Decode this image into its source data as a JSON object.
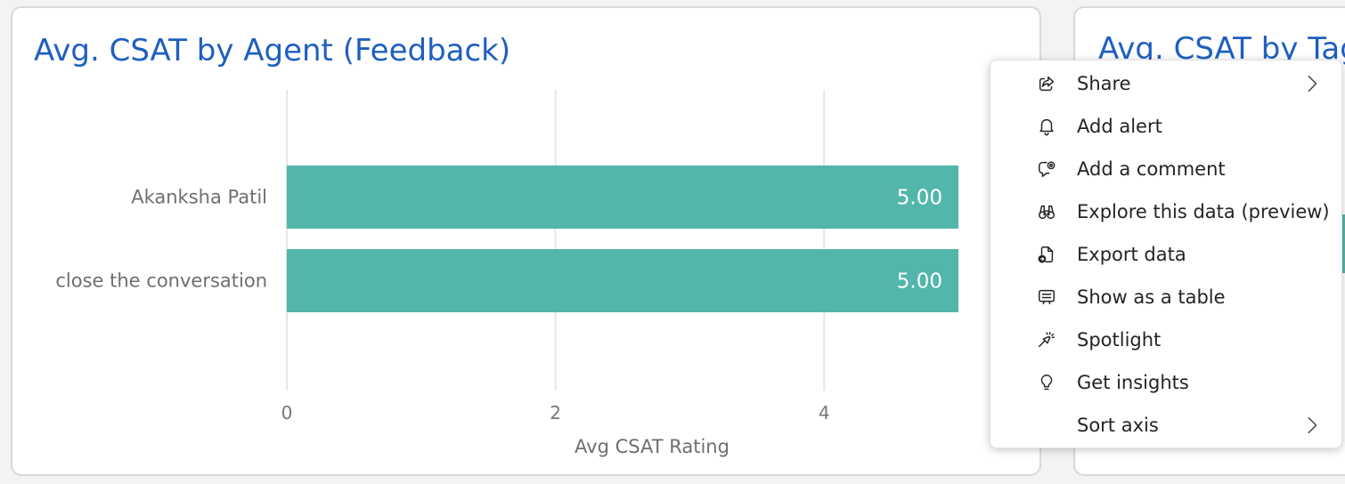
{
  "main_card": {
    "title": "Avg. CSAT by Agent (Feedback)"
  },
  "second_card": {
    "title": "Avg. CSAT by Tag",
    "accent_color": "#52b7aa"
  },
  "chart_data": {
    "type": "bar",
    "orientation": "horizontal",
    "title": "Avg. CSAT by Agent (Feedback)",
    "categories": [
      "Akanksha Patil",
      "close the conversation"
    ],
    "values": [
      5.0,
      5.0
    ],
    "data_labels": [
      "5.00",
      "5.00"
    ],
    "xlabel": "Avg CSAT Rating",
    "ylabel": "",
    "xlim": [
      0,
      5.2
    ],
    "xticks": [
      0,
      2,
      4
    ],
    "xtick_labels": [
      "0",
      "2",
      "4"
    ],
    "grid": true,
    "bar_color": "#52b7aa"
  },
  "context_menu": {
    "items": [
      {
        "label": "Share",
        "icon": "share-icon",
        "submenu": true
      },
      {
        "label": "Add alert",
        "icon": "bell-icon",
        "submenu": false
      },
      {
        "label": "Add a comment",
        "icon": "comment-icon",
        "submenu": false
      },
      {
        "label": "Explore this data (preview)",
        "icon": "binoculars-icon",
        "submenu": false
      },
      {
        "label": "Export data",
        "icon": "export-icon",
        "submenu": false
      },
      {
        "label": "Show as a table",
        "icon": "table-icon",
        "submenu": false
      },
      {
        "label": "Spotlight",
        "icon": "spotlight-icon",
        "submenu": false
      },
      {
        "label": "Get insights",
        "icon": "lightbulb-icon",
        "submenu": false
      },
      {
        "label": "Sort axis",
        "icon": "",
        "submenu": true
      }
    ]
  }
}
